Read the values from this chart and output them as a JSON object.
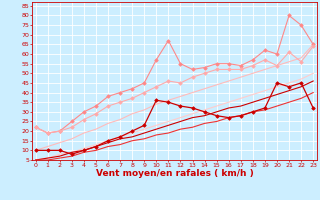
{
  "xlabel": "Vent moyen/en rafales ( km/h )",
  "bg_color": "#cceeff",
  "grid_color": "#ffffff",
  "x_values": [
    0,
    1,
    2,
    3,
    4,
    5,
    6,
    7,
    8,
    9,
    10,
    11,
    12,
    13,
    14,
    15,
    16,
    17,
    18,
    19,
    20,
    21,
    22,
    23
  ],
  "lines": [
    {
      "name": "upper_pink_spiky",
      "color": "#ff8888",
      "linewidth": 0.8,
      "marker": "D",
      "markersize": 1.8,
      "y": [
        22,
        19,
        20,
        25,
        30,
        33,
        38,
        40,
        42,
        45,
        57,
        67,
        55,
        52,
        53,
        55,
        55,
        54,
        57,
        62,
        60,
        80,
        75,
        65
      ]
    },
    {
      "name": "mid_pink_smooth",
      "color": "#ffaaaa",
      "linewidth": 0.8,
      "marker": "D",
      "markersize": 1.8,
      "y": [
        22,
        19,
        20,
        22,
        26,
        29,
        33,
        35,
        37,
        40,
        43,
        46,
        45,
        48,
        50,
        52,
        52,
        52,
        54,
        57,
        54,
        61,
        56,
        64
      ]
    },
    {
      "name": "upper_diagonal_pink",
      "color": "#ffbbbb",
      "linewidth": 0.8,
      "marker": null,
      "markersize": 0,
      "y": [
        10,
        12,
        14,
        16,
        19,
        21,
        24,
        26,
        29,
        31,
        34,
        36,
        38,
        40,
        42,
        44,
        46,
        48,
        50,
        52,
        54,
        56,
        58,
        65
      ]
    },
    {
      "name": "lower_diagonal_pink",
      "color": "#ffcccc",
      "linewidth": 0.8,
      "marker": null,
      "markersize": 0,
      "y": [
        5,
        6,
        8,
        9,
        11,
        13,
        15,
        17,
        19,
        21,
        23,
        25,
        27,
        29,
        31,
        33,
        35,
        37,
        39,
        41,
        43,
        45,
        47,
        50
      ]
    },
    {
      "name": "dark_red_markers",
      "color": "#cc0000",
      "linewidth": 0.9,
      "marker": "D",
      "markersize": 1.8,
      "y": [
        10,
        10,
        10,
        8,
        10,
        12,
        15,
        17,
        20,
        23,
        36,
        35,
        33,
        32,
        30,
        28,
        27,
        28,
        30,
        32,
        45,
        43,
        45,
        32
      ]
    },
    {
      "name": "dark_red_diagonal1",
      "color": "#cc0000",
      "linewidth": 0.8,
      "marker": null,
      "markersize": 0,
      "y": [
        5,
        6,
        7,
        9,
        10,
        12,
        14,
        16,
        17,
        19,
        21,
        23,
        25,
        27,
        28,
        30,
        32,
        33,
        35,
        37,
        39,
        41,
        43,
        46
      ]
    },
    {
      "name": "dark_red_diagonal2",
      "color": "#ee3333",
      "linewidth": 0.8,
      "marker": null,
      "markersize": 0,
      "y": [
        5,
        5,
        6,
        7,
        9,
        10,
        12,
        13,
        15,
        16,
        18,
        19,
        21,
        22,
        24,
        25,
        27,
        28,
        30,
        31,
        33,
        35,
        37,
        40
      ]
    }
  ],
  "yticks": [
    5,
    10,
    15,
    20,
    25,
    30,
    35,
    40,
    45,
    50,
    55,
    60,
    65,
    70,
    75,
    80,
    85
  ],
  "xticks": [
    0,
    1,
    2,
    3,
    4,
    5,
    6,
    7,
    8,
    9,
    10,
    11,
    12,
    13,
    14,
    15,
    16,
    17,
    18,
    19,
    20,
    21,
    22,
    23
  ],
  "ylim": [
    5,
    87
  ],
  "xlim": [
    -0.3,
    23.3
  ],
  "tick_fontsize": 4.5,
  "xlabel_fontsize": 6.5,
  "xlabel_color": "#cc0000",
  "tick_color": "#cc0000",
  "axis_color": "#cc0000",
  "spine_color": "#cc0000"
}
